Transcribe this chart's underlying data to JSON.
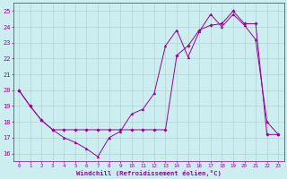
{
  "xlabel": "Windchill (Refroidissement éolien,°C)",
  "background_color": "#cceef0",
  "grid_color": "#aacccc",
  "line_color": "#990099",
  "xlim": [
    -0.5,
    23.5
  ],
  "ylim": [
    15.5,
    25.5
  ],
  "yticks": [
    16,
    17,
    18,
    19,
    20,
    21,
    22,
    23,
    24,
    25
  ],
  "xticks": [
    0,
    1,
    2,
    3,
    4,
    5,
    6,
    7,
    8,
    9,
    10,
    11,
    12,
    13,
    14,
    15,
    16,
    17,
    18,
    19,
    20,
    21,
    22,
    23
  ],
  "series1_x": [
    0,
    1,
    2,
    3,
    4,
    5,
    6,
    7,
    8,
    9,
    10,
    11,
    12,
    13,
    14,
    15,
    16,
    17,
    18,
    19,
    20,
    21,
    22,
    23
  ],
  "series1_y": [
    20.0,
    19.0,
    18.1,
    17.5,
    17.0,
    16.7,
    16.3,
    15.8,
    17.0,
    17.4,
    18.5,
    18.8,
    19.8,
    22.8,
    23.8,
    22.1,
    23.7,
    24.8,
    24.0,
    24.8,
    24.1,
    23.2,
    18.0,
    17.2
  ],
  "series2_x": [
    0,
    1,
    2,
    3,
    4,
    5,
    6,
    7,
    8,
    9,
    10,
    11,
    12,
    13,
    14,
    15,
    16,
    17,
    18,
    19,
    20,
    21,
    22,
    23
  ],
  "series2_y": [
    20.0,
    19.0,
    18.1,
    17.5,
    17.5,
    17.5,
    17.5,
    17.5,
    17.5,
    17.5,
    17.5,
    17.5,
    17.5,
    17.5,
    22.2,
    22.8,
    23.8,
    24.1,
    24.2,
    25.0,
    24.2,
    24.2,
    17.2,
    17.2
  ]
}
